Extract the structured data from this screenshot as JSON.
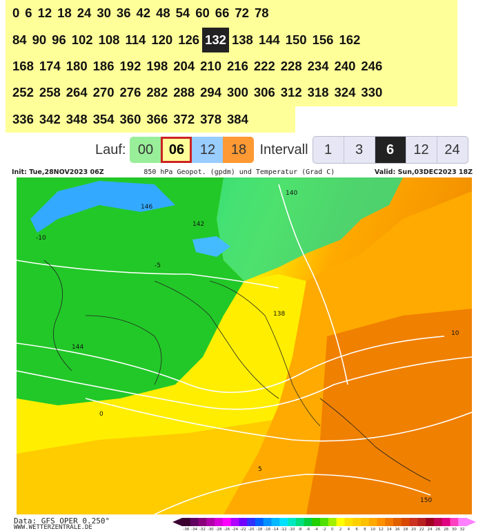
{
  "forecast_steps": {
    "rows": [
      [
        "0",
        "6",
        "12",
        "18",
        "24",
        "30",
        "36",
        "42",
        "48",
        "54",
        "60",
        "66",
        "72",
        "78"
      ],
      [
        "84",
        "90",
        "96",
        "102",
        "108",
        "114",
        "120",
        "126",
        "132",
        "138",
        "144",
        "150",
        "156",
        "162"
      ],
      [
        "168",
        "174",
        "180",
        "186",
        "192",
        "198",
        "204",
        "210",
        "216",
        "222",
        "228",
        "234",
        "240",
        "246"
      ],
      [
        "252",
        "258",
        "264",
        "270",
        "276",
        "282",
        "288",
        "294",
        "300",
        "306",
        "312",
        "318",
        "324",
        "330"
      ],
      [
        "336",
        "342",
        "348",
        "354",
        "360",
        "366",
        "372",
        "378",
        "384"
      ]
    ],
    "selected": "132"
  },
  "run": {
    "label": "Lauf:",
    "options": [
      {
        "label": "00",
        "color": "#99ee99"
      },
      {
        "label": "06",
        "color": "#ffff99"
      },
      {
        "label": "12",
        "color": "#99ccff"
      },
      {
        "label": "18",
        "color": "#ff9933"
      }
    ],
    "selected": "06"
  },
  "interval": {
    "label": "Intervall",
    "options": [
      "1",
      "3",
      "6",
      "12",
      "24"
    ],
    "selected": "6"
  },
  "chart": {
    "init": "Init: Tue,28NOV2023 06Z",
    "title": "850 hPa Geopot. (gpdm) und Temperatur (Grad C)",
    "valid": "Valid: Sun,03DEC2023 18Z",
    "contour_labels": [
      "146",
      "144",
      "142",
      "140",
      "138",
      "-10",
      "-5",
      "0",
      "5",
      "10",
      "150"
    ],
    "data_source": "Data: GFS OPER 0.250°",
    "website": "WWW.WETTERZENTRALE.DE",
    "legend_ticks": [
      "-36",
      "-34",
      "-32",
      "-30",
      "-28",
      "-26",
      "-24",
      "-22",
      "-20",
      "-18",
      "-16",
      "-14",
      "-12",
      "-10",
      "-8",
      "-6",
      "-4",
      "-2",
      "0",
      "2",
      "4",
      "6",
      "8",
      "10",
      "12",
      "14",
      "16",
      "18",
      "20",
      "22",
      "24",
      "26",
      "28",
      "30",
      "32"
    ],
    "legend_colors": [
      "#3a0030",
      "#600060",
      "#8a007a",
      "#b000a8",
      "#d800d8",
      "#ff00ff",
      "#b000ff",
      "#7000ff",
      "#3030ff",
      "#0060ff",
      "#0090ff",
      "#00b8ff",
      "#00e0ff",
      "#00e8c0",
      "#00e080",
      "#00d040",
      "#20d000",
      "#50e000",
      "#a0f000",
      "#ffff00",
      "#ffe000",
      "#ffd000",
      "#ffc000",
      "#ffa800",
      "#ff9000",
      "#f07800",
      "#e06000",
      "#d84800",
      "#cc3020",
      "#b82020",
      "#a00020",
      "#c00050",
      "#e00080",
      "#ff40c0",
      "#ff80ff"
    ]
  }
}
